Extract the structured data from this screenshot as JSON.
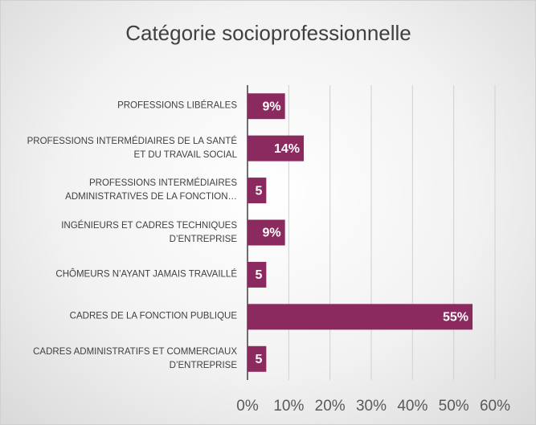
{
  "chart_data": {
    "type": "bar",
    "orientation": "horizontal",
    "title": "Catégorie socioprofessionnelle",
    "categories": [
      "PROFESSIONS LIBÉRALES",
      "PROFESSIONS INTERMÉDIAIRES DE LA SANTÉ ET DU TRAVAIL SOCIAL",
      "PROFESSIONS INTERMÉDIAIRES ADMINISTRATIVES DE LA FONCTION…",
      "INGÉNIEURS ET CADRES TECHNIQUES D’ENTREPRISE",
      "CHÔMEURS N’AYANT JAMAIS TRAVAILLÉ",
      "CADRES DE LA FONCTION PUBLIQUE",
      "CADRES ADMINISTRATIFS ET COMMERCIAUX D’ENTREPRISE"
    ],
    "values": [
      9.09,
      13.64,
      4.55,
      9.09,
      4.55,
      54.55,
      4.55
    ],
    "value_labels": [
      "9%",
      "14%",
      "5",
      "9%",
      "5",
      "55%",
      "5"
    ],
    "color": "#8b2a5f",
    "xlim": [
      0,
      60
    ],
    "xticks": [
      {
        "value": 0,
        "label": "0%"
      },
      {
        "value": 10,
        "label": "10%"
      },
      {
        "value": 20,
        "label": "20%"
      },
      {
        "value": 30,
        "label": "30%"
      },
      {
        "value": 40,
        "label": "40%"
      },
      {
        "value": 50,
        "label": "50%"
      },
      {
        "value": 60,
        "label": "60%"
      }
    ],
    "grid": true
  }
}
